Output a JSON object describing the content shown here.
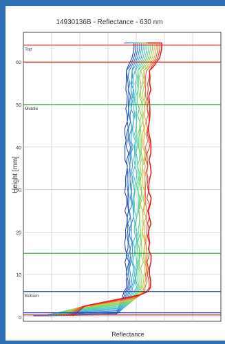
{
  "chart_data": {
    "type": "line",
    "title": "14930136B - Reflectance - 630 nm",
    "xlabel": "Reflectance",
    "ylabel": "Height [mm]",
    "ylim": [
      -1,
      67
    ],
    "xlim": [
      0,
      1
    ],
    "y_ticks": [
      "0",
      "10",
      "20",
      "30",
      "40",
      "50",
      "60"
    ],
    "grid": true,
    "x_tick_labels_visible": false,
    "reference_lines": [
      {
        "label": "Top",
        "y": 64,
        "color": "#e0211d"
      },
      {
        "label": "",
        "y": 60,
        "color": "#e0211d"
      },
      {
        "label": "Middle",
        "y": 50,
        "color": "#2e9a35"
      },
      {
        "label": "",
        "y": 15,
        "color": "#2e9a35"
      },
      {
        "label": "Bottom",
        "y": 6,
        "color": "#2a3fb0"
      },
      {
        "label": "",
        "y": 1,
        "color": "#2a3fb0"
      },
      {
        "label": "",
        "y": 0.5,
        "color": "#e0211d"
      }
    ],
    "series_group": {
      "count": 16,
      "colors_low_to_high": [
        "#1f3fb6",
        "#2358c4",
        "#2a6fd0",
        "#2f86d8",
        "#36a0dc",
        "#3fb6d4",
        "#49c7c0",
        "#52cfa4",
        "#5fd585",
        "#73d86a",
        "#8fd45a",
        "#bcd04f",
        "#e0a844",
        "#ea6b36",
        "#e83b2a",
        "#e0211d"
      ],
      "base_reflectance_range": [
        0.52,
        0.64
      ],
      "top_y": 64.5,
      "bottom_y": 0,
      "notes_visible": false
    }
  }
}
